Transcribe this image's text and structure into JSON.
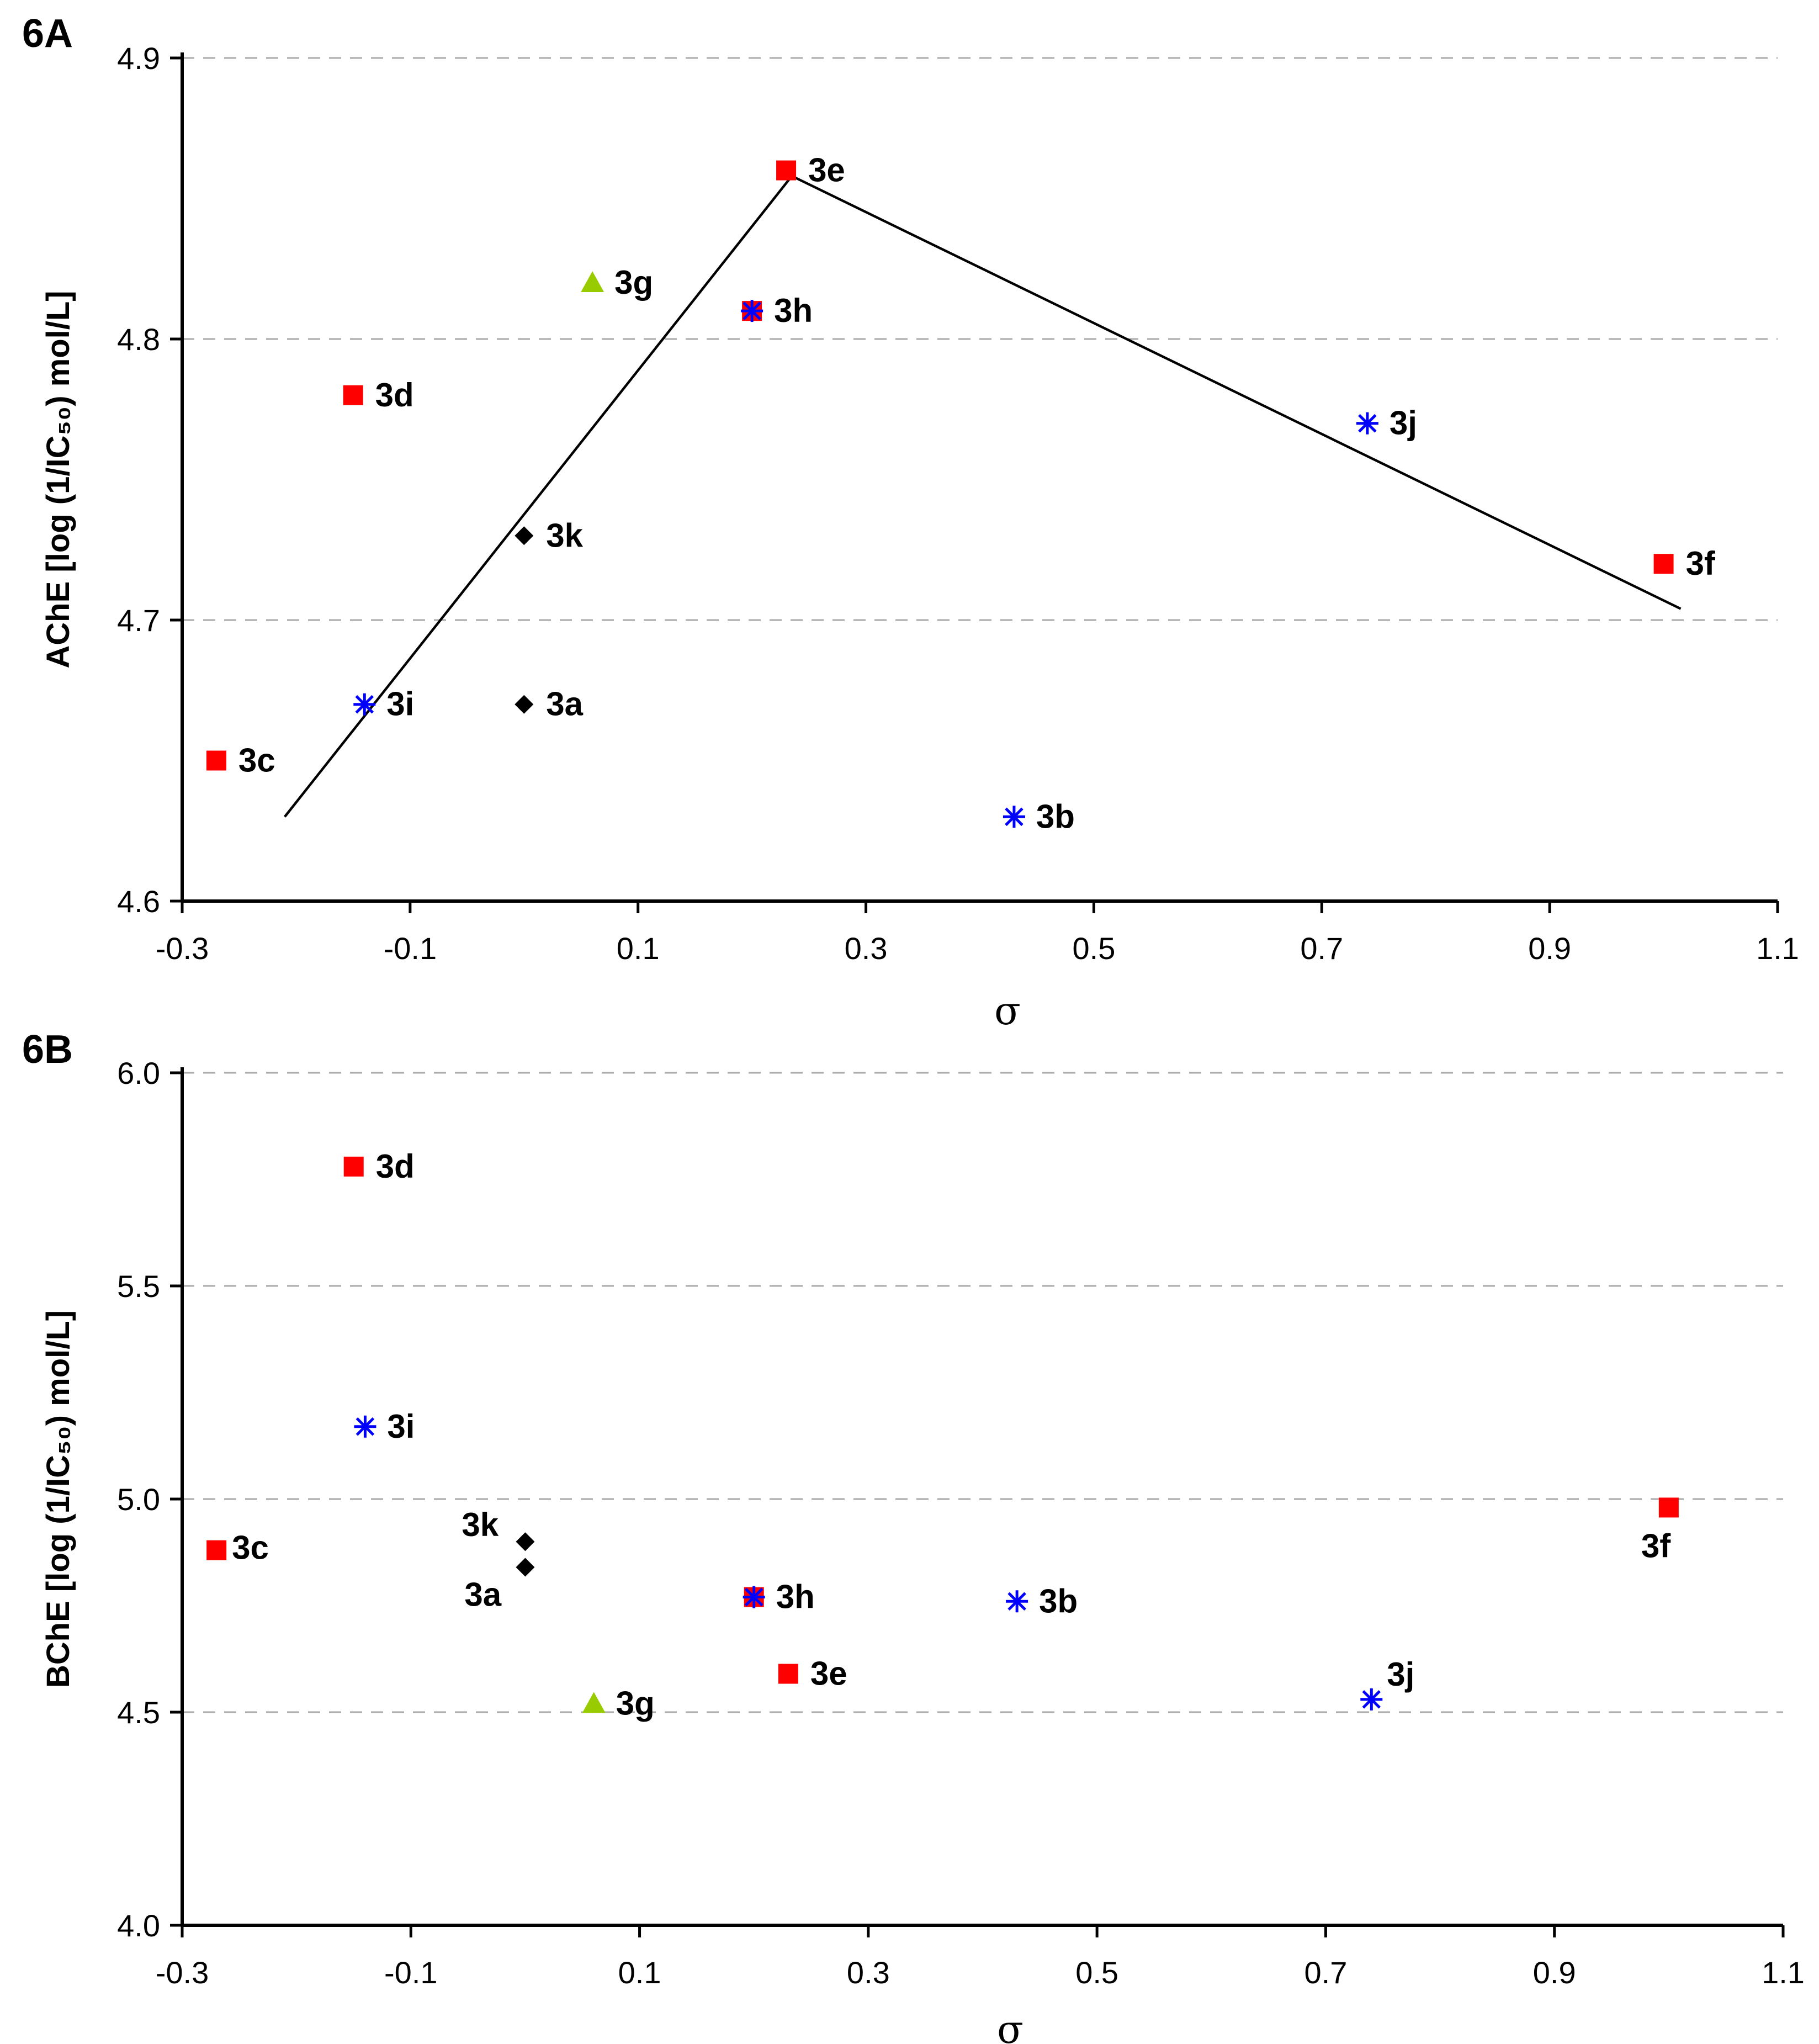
{
  "colors": {
    "square": "#ff0000",
    "star": "#0000ff",
    "diamond": "#000000",
    "triangle": "#99cc00",
    "grid": "#aaaaaa",
    "axis": "#000000"
  },
  "chart_data": [
    {
      "type": "scatter",
      "panel_label": "6A",
      "xlabel": "σ",
      "ylabel": "AChE [log (1/IC₅₀) mol/L]",
      "xlim": [
        -0.3,
        1.1
      ],
      "ylim": [
        4.6,
        4.9
      ],
      "xticks": [
        "-0.3",
        "-0.1",
        "0.1",
        "0.3",
        "0.5",
        "0.7",
        "0.9",
        "1.1"
      ],
      "yticks": [
        "4.6",
        "4.7",
        "4.8",
        "4.9"
      ],
      "grid": true,
      "points": [
        {
          "label": "3a",
          "x": 0.0,
          "y": 4.67,
          "marker": "diamond"
        },
        {
          "label": "3b",
          "x": 0.43,
          "y": 4.63,
          "marker": "star"
        },
        {
          "label": "3c",
          "x": -0.27,
          "y": 4.65,
          "marker": "square"
        },
        {
          "label": "3d",
          "x": -0.15,
          "y": 4.78,
          "marker": "square"
        },
        {
          "label": "3e",
          "x": 0.23,
          "y": 4.86,
          "marker": "square"
        },
        {
          "label": "3f",
          "x": 1.0,
          "y": 4.72,
          "marker": "square"
        },
        {
          "label": "3g",
          "x": 0.06,
          "y": 4.82,
          "marker": "triangle"
        },
        {
          "label": "3h",
          "x": 0.2,
          "y": 4.81,
          "marker": "star-square"
        },
        {
          "label": "3i",
          "x": -0.14,
          "y": 4.67,
          "marker": "star"
        },
        {
          "label": "3j",
          "x": 0.74,
          "y": 4.77,
          "marker": "star"
        },
        {
          "label": "3k",
          "x": 0.0,
          "y": 4.73,
          "marker": "diamond"
        }
      ],
      "fit_line": [
        {
          "x": -0.21,
          "y": 4.63
        },
        {
          "x": 0.235,
          "y": 4.858
        },
        {
          "x": 1.015,
          "y": 4.704
        }
      ]
    },
    {
      "type": "scatter",
      "panel_label": "6B",
      "xlabel": "σ",
      "ylabel": "BChE [log (1/IC₅₀) mol/L]",
      "xlim": [
        -0.3,
        1.1
      ],
      "ylim": [
        4.0,
        6.0
      ],
      "xticks": [
        "-0.3",
        "-0.1",
        "0.1",
        "0.3",
        "0.5",
        "0.7",
        "0.9",
        "1.1"
      ],
      "yticks": [
        "4.0",
        "4.5",
        "5.0",
        "5.5",
        "6.0"
      ],
      "grid": true,
      "points": [
        {
          "label": "3a",
          "x": 0.0,
          "y": 4.84,
          "marker": "diamond"
        },
        {
          "label": "3b",
          "x": 0.43,
          "y": 4.76,
          "marker": "star"
        },
        {
          "label": "3c",
          "x": -0.27,
          "y": 4.88,
          "marker": "square"
        },
        {
          "label": "3d",
          "x": -0.15,
          "y": 5.78,
          "marker": "square"
        },
        {
          "label": "3e",
          "x": 0.23,
          "y": 4.59,
          "marker": "square"
        },
        {
          "label": "3f",
          "x": 1.0,
          "y": 4.98,
          "marker": "square"
        },
        {
          "label": "3g",
          "x": 0.06,
          "y": 4.52,
          "marker": "triangle"
        },
        {
          "label": "3h",
          "x": 0.2,
          "y": 4.77,
          "marker": "star-square"
        },
        {
          "label": "3i",
          "x": -0.14,
          "y": 5.17,
          "marker": "star"
        },
        {
          "label": "3j",
          "x": 0.74,
          "y": 4.53,
          "marker": "star"
        },
        {
          "label": "3k",
          "x": 0.0,
          "y": 4.9,
          "marker": "diamond"
        }
      ]
    }
  ]
}
